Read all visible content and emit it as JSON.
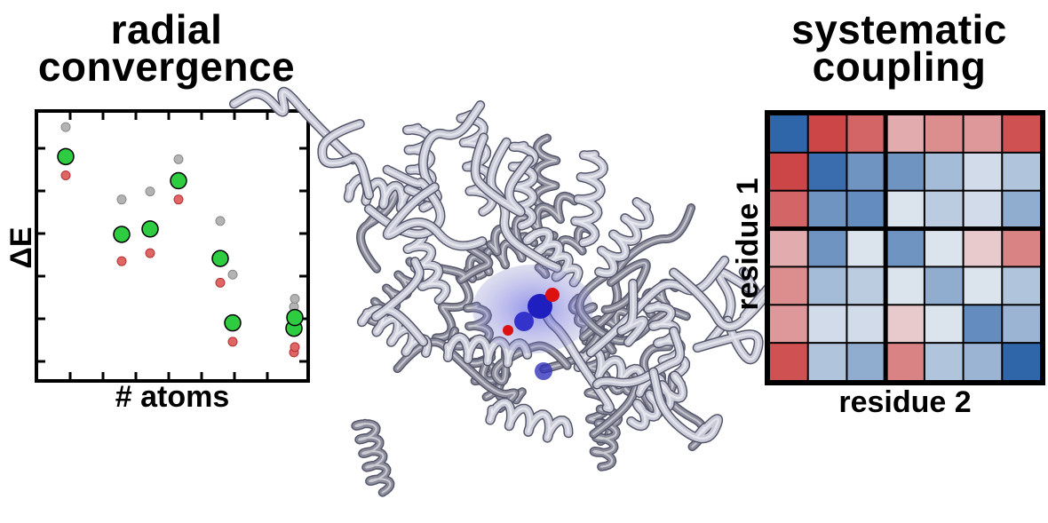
{
  "left_panel": {
    "title_line1": "radial",
    "title_line2": "convergence",
    "xlabel": "# atoms",
    "ylabel": "ΔE"
  },
  "right_panel": {
    "title_line1": "systematic",
    "title_line2": "coupling",
    "xlabel": "residue 2",
    "ylabel": "residue 1"
  },
  "colors": {
    "green_marker": "#2ecc40",
    "gray_marker": "#b3b3b3",
    "red_marker": "#e06666",
    "protein_tube": "#c9cbd8",
    "protein_shadow": "#7f8090",
    "ligand_blue": "#2222cc",
    "ligand_red": "#dd0000"
  },
  "center_panel": {
    "image": "protein ribbon structure with bound ligand"
  },
  "chart_data": [
    {
      "type": "scatter",
      "title": "radial convergence",
      "xlabel": "# atoms",
      "ylabel": "ΔE",
      "series": [
        {
          "color": "gray",
          "x": [
            1,
            2,
            3,
            4,
            5,
            6,
            7,
            8
          ],
          "y": [
            9.3,
            6.6,
            6.9,
            8.1,
            5.8,
            3.8,
            2.6,
            2.9
          ]
        },
        {
          "color": "green",
          "x": [
            1,
            2,
            3,
            4,
            5,
            6,
            7,
            8
          ],
          "y": [
            8.2,
            5.3,
            5.5,
            7.3,
            4.4,
            2.0,
            1.8,
            2.2
          ]
        },
        {
          "color": "red",
          "x": [
            1,
            2,
            3,
            4,
            5,
            6,
            7,
            8
          ],
          "y": [
            7.5,
            4.3,
            4.6,
            6.6,
            3.5,
            1.3,
            0.9,
            1.1
          ]
        }
      ]
    },
    {
      "type": "heatmap",
      "title": "systematic coupling",
      "xlabel": "residue 2",
      "ylabel": "residue 1",
      "scale": "diverging blue-white-red",
      "blocks": "2x2 separated by thick lines after row 3 and column 3",
      "values": [
        [
          -0.9,
          0.85,
          0.7,
          0.35,
          0.5,
          0.45,
          0.8
        ],
        [
          0.85,
          -0.85,
          -0.6,
          -0.6,
          -0.35,
          -0.15,
          -0.3
        ],
        [
          0.7,
          -0.6,
          -0.65,
          -0.1,
          -0.25,
          -0.15,
          -0.45
        ],
        [
          0.35,
          -0.6,
          -0.1,
          -0.6,
          -0.1,
          0.2,
          0.55
        ],
        [
          0.5,
          -0.35,
          -0.25,
          -0.1,
          -0.45,
          -0.1,
          -0.3
        ],
        [
          0.45,
          -0.15,
          -0.15,
          0.2,
          -0.1,
          -0.65,
          -0.4
        ],
        [
          0.8,
          -0.3,
          -0.45,
          0.55,
          -0.3,
          -0.4,
          -0.9
        ]
      ]
    }
  ]
}
